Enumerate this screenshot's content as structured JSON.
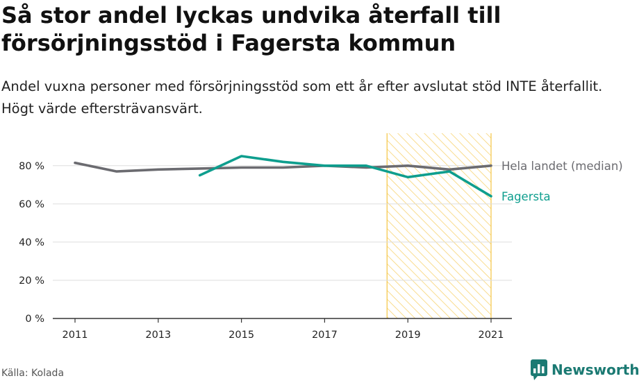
{
  "header": {
    "title": "Så stor andel lyckas undvika återfall till försörjningsstöd i Fagersta kommun",
    "subtitle": "Andel vuxna personer med försörjningsstöd som ett år efter avslutat stöd INTE återfallit. Högt värde eftersträvansvärt."
  },
  "footer": {
    "source": "Källa: Kolada",
    "brand": "Newsworthy",
    "brand_icon": "newsworthy-logo-icon"
  },
  "chart_data": {
    "type": "line",
    "title": "Så stor andel lyckas undvika återfall till försörjningsstöd i Fagersta kommun",
    "subtitle": "Andel vuxna personer med försörjningsstöd som ett år efter avslutat stöd INTE återfallit. Högt värde eftersträvansvärt.",
    "xlabel": "",
    "ylabel": "",
    "xlim": [
      2011,
      2021
    ],
    "ylim": [
      0,
      97
    ],
    "x_ticks": [
      2011,
      2013,
      2015,
      2017,
      2019,
      2021
    ],
    "x_tick_labels": [
      "2011",
      "2013",
      "2015",
      "2017",
      "2019",
      "2021"
    ],
    "y_ticks": [
      0,
      20,
      40,
      60,
      80
    ],
    "y_tick_labels": [
      "0 %",
      "20 %",
      "40 %",
      "60 %",
      "80 %"
    ],
    "grid": "horizontal",
    "legend": "direct labels at line ends",
    "highlight_band": {
      "from": 2018.5,
      "to": 2021,
      "color": "#f5c542",
      "pattern": "diagonal-hatch"
    },
    "series": [
      {
        "name": "Hela landet (median)",
        "color": "#6b6b70",
        "x": [
          2011,
          2012,
          2013,
          2014,
          2015,
          2016,
          2017,
          2018,
          2019,
          2020,
          2021
        ],
        "values": [
          81.5,
          77,
          78,
          78.5,
          79,
          79,
          80,
          79,
          80,
          78,
          80
        ]
      },
      {
        "name": "Fagersta",
        "color": "#0e9e8e",
        "x": [
          2014,
          2015,
          2016,
          2017,
          2018,
          2019,
          2020,
          2021
        ],
        "values": [
          75,
          85,
          82,
          80,
          80,
          74,
          77,
          64
        ]
      }
    ]
  }
}
